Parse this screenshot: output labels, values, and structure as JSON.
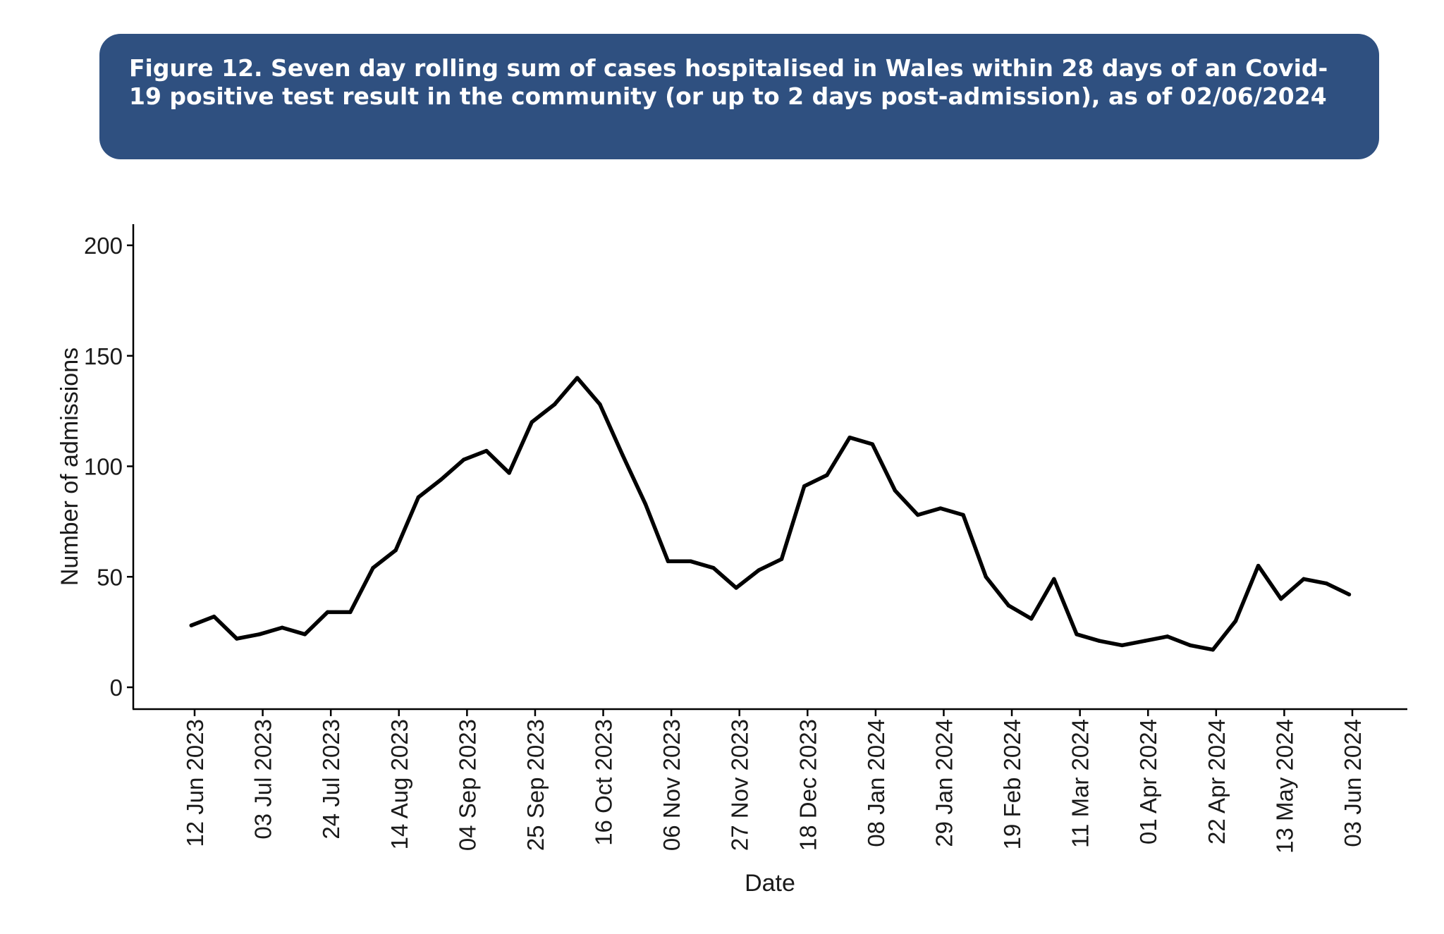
{
  "figure": {
    "title": "Figure 12. Seven day rolling sum of cases hospitalised in Wales within 28 days of an Covid-19 positive test result in the community (or up to 2 days post-admission), as of 02/06/2024"
  },
  "chart_data": {
    "type": "line",
    "xlabel": "Date",
    "ylabel": "Number of admissions",
    "ylim": [
      -10,
      210
    ],
    "yticks": [
      0,
      50,
      100,
      150,
      200
    ],
    "grid": false,
    "legend": "none",
    "line_color": "#000000",
    "xtick_dates": [
      "2023-06-12",
      "2023-07-03",
      "2023-07-24",
      "2023-08-14",
      "2023-09-04",
      "2023-09-25",
      "2023-10-16",
      "2023-11-06",
      "2023-11-27",
      "2023-12-18",
      "2024-01-08",
      "2024-01-29",
      "2024-02-19",
      "2024-03-11",
      "2024-04-01",
      "2024-04-22",
      "2024-05-13",
      "2024-06-03"
    ],
    "xtick_labels": [
      "12 Jun 2023",
      "03 Jul 2023",
      "24 Jul 2023",
      "14 Aug 2023",
      "04 Sep 2023",
      "25 Sep 2023",
      "16 Oct 2023",
      "06 Nov 2023",
      "27 Nov 2023",
      "18 Dec 2023",
      "08 Jan 2024",
      "29 Jan 2024",
      "19 Feb 2024",
      "11 Mar 2024",
      "01 Apr 2024",
      "22 Apr 2024",
      "13 May 2024",
      "03 Jun 2024"
    ],
    "x": [
      "2023-06-11",
      "2023-06-18",
      "2023-06-25",
      "2023-07-02",
      "2023-07-09",
      "2023-07-16",
      "2023-07-23",
      "2023-07-30",
      "2023-08-06",
      "2023-08-13",
      "2023-08-20",
      "2023-08-27",
      "2023-09-03",
      "2023-09-10",
      "2023-09-17",
      "2023-09-24",
      "2023-10-01",
      "2023-10-08",
      "2023-10-15",
      "2023-10-22",
      "2023-10-29",
      "2023-11-05",
      "2023-11-12",
      "2023-11-19",
      "2023-11-26",
      "2023-12-03",
      "2023-12-10",
      "2023-12-17",
      "2023-12-24",
      "2023-12-31",
      "2024-01-07",
      "2024-01-14",
      "2024-01-21",
      "2024-01-28",
      "2024-02-04",
      "2024-02-11",
      "2024-02-18",
      "2024-02-25",
      "2024-03-03",
      "2024-03-10",
      "2024-03-17",
      "2024-03-24",
      "2024-03-31",
      "2024-04-07",
      "2024-04-14",
      "2024-04-21",
      "2024-04-28",
      "2024-05-05",
      "2024-05-12",
      "2024-05-19",
      "2024-05-26",
      "2024-06-02"
    ],
    "values": [
      28,
      32,
      22,
      24,
      27,
      24,
      34,
      34,
      54,
      62,
      86,
      94,
      103,
      107,
      97,
      120,
      128,
      140,
      128,
      105,
      83,
      57,
      57,
      54,
      45,
      53,
      58,
      91,
      96,
      113,
      110,
      89,
      78,
      81,
      78,
      50,
      37,
      31,
      49,
      24,
      21,
      19,
      21,
      23,
      19,
      17,
      30,
      55,
      40,
      49,
      47,
      42
    ]
  }
}
